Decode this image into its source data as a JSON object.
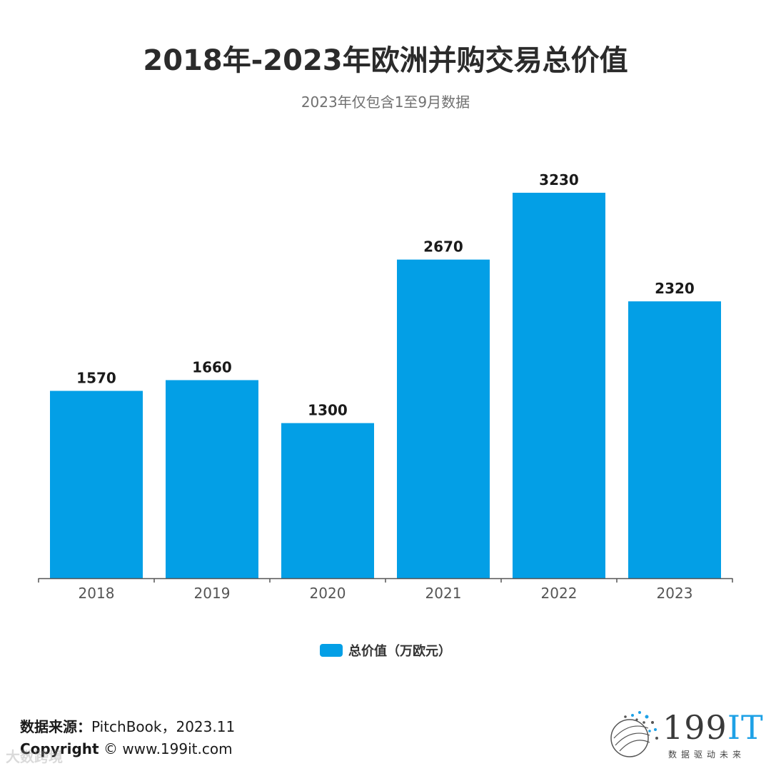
{
  "chart_data": {
    "type": "bar",
    "title": "2018年-2023年欧洲并购交易总价值",
    "subtitle": "2023年仅包含1至9月数据",
    "categories": [
      "2018",
      "2019",
      "2020",
      "2021",
      "2022",
      "2023"
    ],
    "series": [
      {
        "name": "总价值（万欧元）",
        "values": [
          1570,
          1660,
          1300,
          2670,
          3230,
          2320
        ]
      }
    ],
    "data_labels": [
      "1570",
      "1660",
      "1300",
      "2670",
      "3230",
      "2320"
    ],
    "ylim": [
      0,
      3230
    ],
    "grid": false,
    "legend": "bottom-center",
    "bar_color": "#039fe6"
  },
  "footer": {
    "source_label": "数据来源：",
    "source_value": "PitchBook，2023.11",
    "copyright_label": "Copyright",
    "copyright_symbol": "©",
    "copyright_value": "www.199it.com",
    "watermark": "大数跨境"
  },
  "logo": {
    "number": "199",
    "letters": "IT",
    "tagline": "数据驱动未来"
  }
}
